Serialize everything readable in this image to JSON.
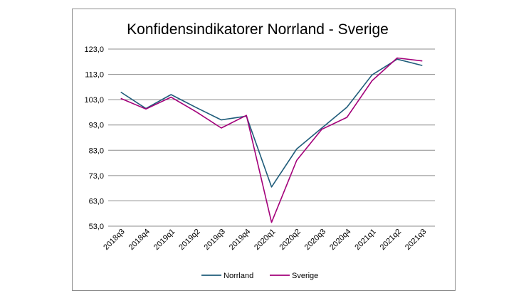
{
  "chart_data": {
    "type": "line",
    "title": "Konfidensindikatorer Norrland - Sverige",
    "xlabel": "",
    "ylabel": "",
    "categories": [
      "2018q3",
      "2018q4",
      "2019q1",
      "2019q2",
      "2019q3",
      "2019q4",
      "2020q1",
      "2020q2",
      "2020q3",
      "2020q4",
      "2021q1",
      "2021q2",
      "2021q3"
    ],
    "yticks": [
      "123,0",
      "113,0",
      "103,0",
      "93,0",
      "83,0",
      "73,0",
      "63,0",
      "53,0"
    ],
    "ylim": [
      53,
      123
    ],
    "grid": true,
    "legend_position": "bottom",
    "series": [
      {
        "name": "Norrland",
        "color": "#1f5c7a",
        "values": [
          106.0,
          99.5,
          105.0,
          99.9,
          95.0,
          96.5,
          68.5,
          83.5,
          91.8,
          100.0,
          112.8,
          119.0,
          116.5
        ]
      },
      {
        "name": "Sverige",
        "color": "#a3007a",
        "values": [
          103.5,
          99.3,
          104.0,
          98.2,
          91.8,
          96.8,
          54.5,
          79.0,
          91.3,
          96.0,
          110.5,
          119.5,
          118.3
        ]
      }
    ]
  }
}
